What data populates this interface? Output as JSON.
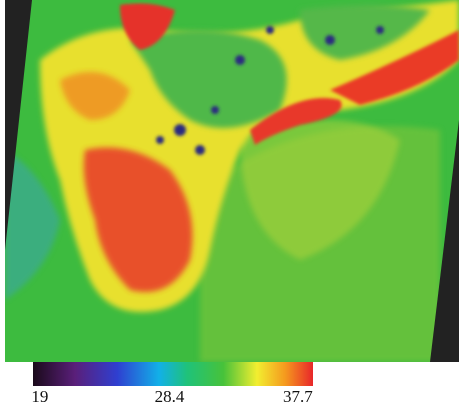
{
  "colorbar": {
    "lim": [
      18.5,
      38.8
    ],
    "ticks": [
      19,
      28.4,
      37.7
    ]
  }
}
